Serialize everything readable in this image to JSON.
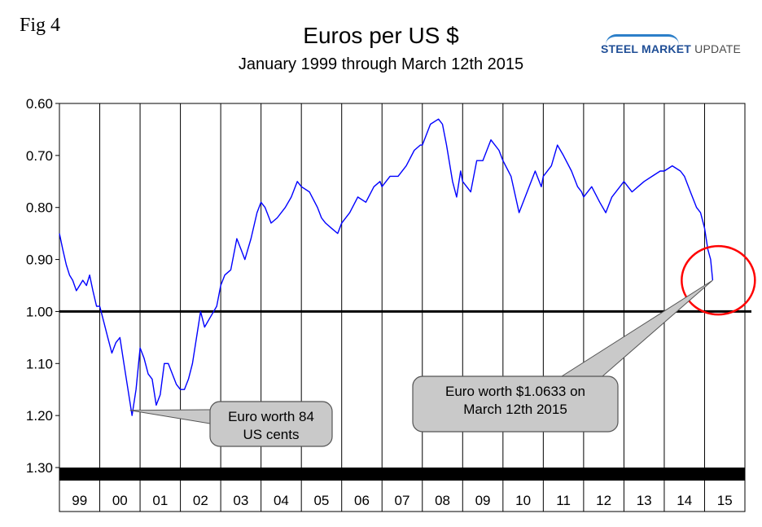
{
  "figure_label": "Fig 4",
  "logo": {
    "part1": "STEEL MARKET",
    "part2": "UPDATE"
  },
  "chart_data": {
    "type": "line",
    "title": "Euros per US $",
    "subtitle": "January 1999 through March 12th 2015",
    "xlabel": "",
    "ylabel": "",
    "ylim": [
      0.6,
      1.3
    ],
    "y_inverted": true,
    "y_ticks": [
      "0.60",
      "0.70",
      "0.80",
      "0.90",
      "1.00",
      "1.10",
      "1.20",
      "1.30"
    ],
    "x_categories": [
      "99",
      "00",
      "01",
      "02",
      "03",
      "04",
      "05",
      "06",
      "07",
      "08",
      "09",
      "10",
      "11",
      "12",
      "13",
      "14",
      "15"
    ],
    "xlim": [
      1999.0,
      2016.0
    ],
    "grid": "vertical",
    "reference_line": 1.0,
    "series": [
      {
        "color": "#0000ff",
        "x": [
          1999.0,
          1999.08,
          1999.17,
          1999.25,
          1999.33,
          1999.42,
          1999.5,
          1999.58,
          1999.67,
          1999.75,
          1999.83,
          1999.92,
          2000.0,
          2000.1,
          2000.2,
          2000.3,
          2000.4,
          2000.5,
          2000.6,
          2000.7,
          2000.8,
          2000.9,
          2001.0,
          2001.1,
          2001.2,
          2001.3,
          2001.4,
          2001.5,
          2001.6,
          2001.7,
          2001.8,
          2001.9,
          2002.0,
          2002.1,
          2002.2,
          2002.3,
          2002.4,
          2002.5,
          2002.6,
          2002.75,
          2002.9,
          2003.0,
          2003.1,
          2003.25,
          2003.4,
          2003.5,
          2003.6,
          2003.75,
          2003.9,
          2004.0,
          2004.1,
          2004.25,
          2004.4,
          2004.6,
          2004.75,
          2004.9,
          2005.0,
          2005.2,
          2005.4,
          2005.5,
          2005.6,
          2005.75,
          2005.9,
          2006.0,
          2006.2,
          2006.4,
          2006.6,
          2006.8,
          2006.95,
          2007.0,
          2007.2,
          2007.4,
          2007.6,
          2007.8,
          2007.95,
          2008.0,
          2008.2,
          2008.4,
          2008.5,
          2008.6,
          2008.75,
          2008.85,
          2008.95,
          2009.0,
          2009.2,
          2009.35,
          2009.5,
          2009.7,
          2009.9,
          2010.0,
          2010.2,
          2010.4,
          2010.5,
          2010.6,
          2010.8,
          2010.95,
          2011.0,
          2011.2,
          2011.35,
          2011.5,
          2011.7,
          2011.85,
          2011.95,
          2012.0,
          2012.2,
          2012.4,
          2012.55,
          2012.7,
          2012.9,
          2013.0,
          2013.2,
          2013.35,
          2013.5,
          2013.7,
          2013.9,
          2014.0,
          2014.2,
          2014.4,
          2014.5,
          2014.65,
          2014.8,
          2014.9,
          2015.0,
          2015.08,
          2015.15,
          2015.2
        ],
        "y": [
          0.85,
          0.88,
          0.91,
          0.93,
          0.94,
          0.96,
          0.95,
          0.94,
          0.95,
          0.93,
          0.96,
          0.99,
          0.99,
          1.02,
          1.05,
          1.08,
          1.06,
          1.05,
          1.1,
          1.15,
          1.2,
          1.15,
          1.07,
          1.09,
          1.12,
          1.13,
          1.18,
          1.16,
          1.1,
          1.1,
          1.12,
          1.14,
          1.15,
          1.15,
          1.13,
          1.1,
          1.05,
          1.0,
          1.03,
          1.01,
          0.99,
          0.95,
          0.93,
          0.92,
          0.86,
          0.88,
          0.9,
          0.86,
          0.81,
          0.79,
          0.8,
          0.83,
          0.82,
          0.8,
          0.78,
          0.75,
          0.76,
          0.77,
          0.8,
          0.82,
          0.83,
          0.84,
          0.85,
          0.83,
          0.81,
          0.78,
          0.79,
          0.76,
          0.75,
          0.76,
          0.74,
          0.74,
          0.72,
          0.69,
          0.68,
          0.68,
          0.64,
          0.63,
          0.64,
          0.68,
          0.75,
          0.78,
          0.73,
          0.75,
          0.77,
          0.71,
          0.71,
          0.67,
          0.69,
          0.71,
          0.74,
          0.81,
          0.79,
          0.77,
          0.73,
          0.76,
          0.74,
          0.72,
          0.68,
          0.7,
          0.73,
          0.76,
          0.77,
          0.78,
          0.76,
          0.79,
          0.81,
          0.78,
          0.76,
          0.75,
          0.77,
          0.76,
          0.75,
          0.74,
          0.73,
          0.73,
          0.72,
          0.73,
          0.74,
          0.77,
          0.8,
          0.81,
          0.84,
          0.88,
          0.9,
          0.94
        ]
      }
    ],
    "annotations": [
      {
        "text_lines": [
          "Euro worth 84",
          "US cents"
        ],
        "target_x": 2000.75,
        "target_y": 1.19
      },
      {
        "text_lines": [
          "Euro worth $1.0633 on",
          "March 12th 2015"
        ],
        "target_x": 2015.2,
        "target_y": 0.94
      }
    ],
    "highlight_circle": {
      "x": 2015.3,
      "y": 0.94
    }
  }
}
